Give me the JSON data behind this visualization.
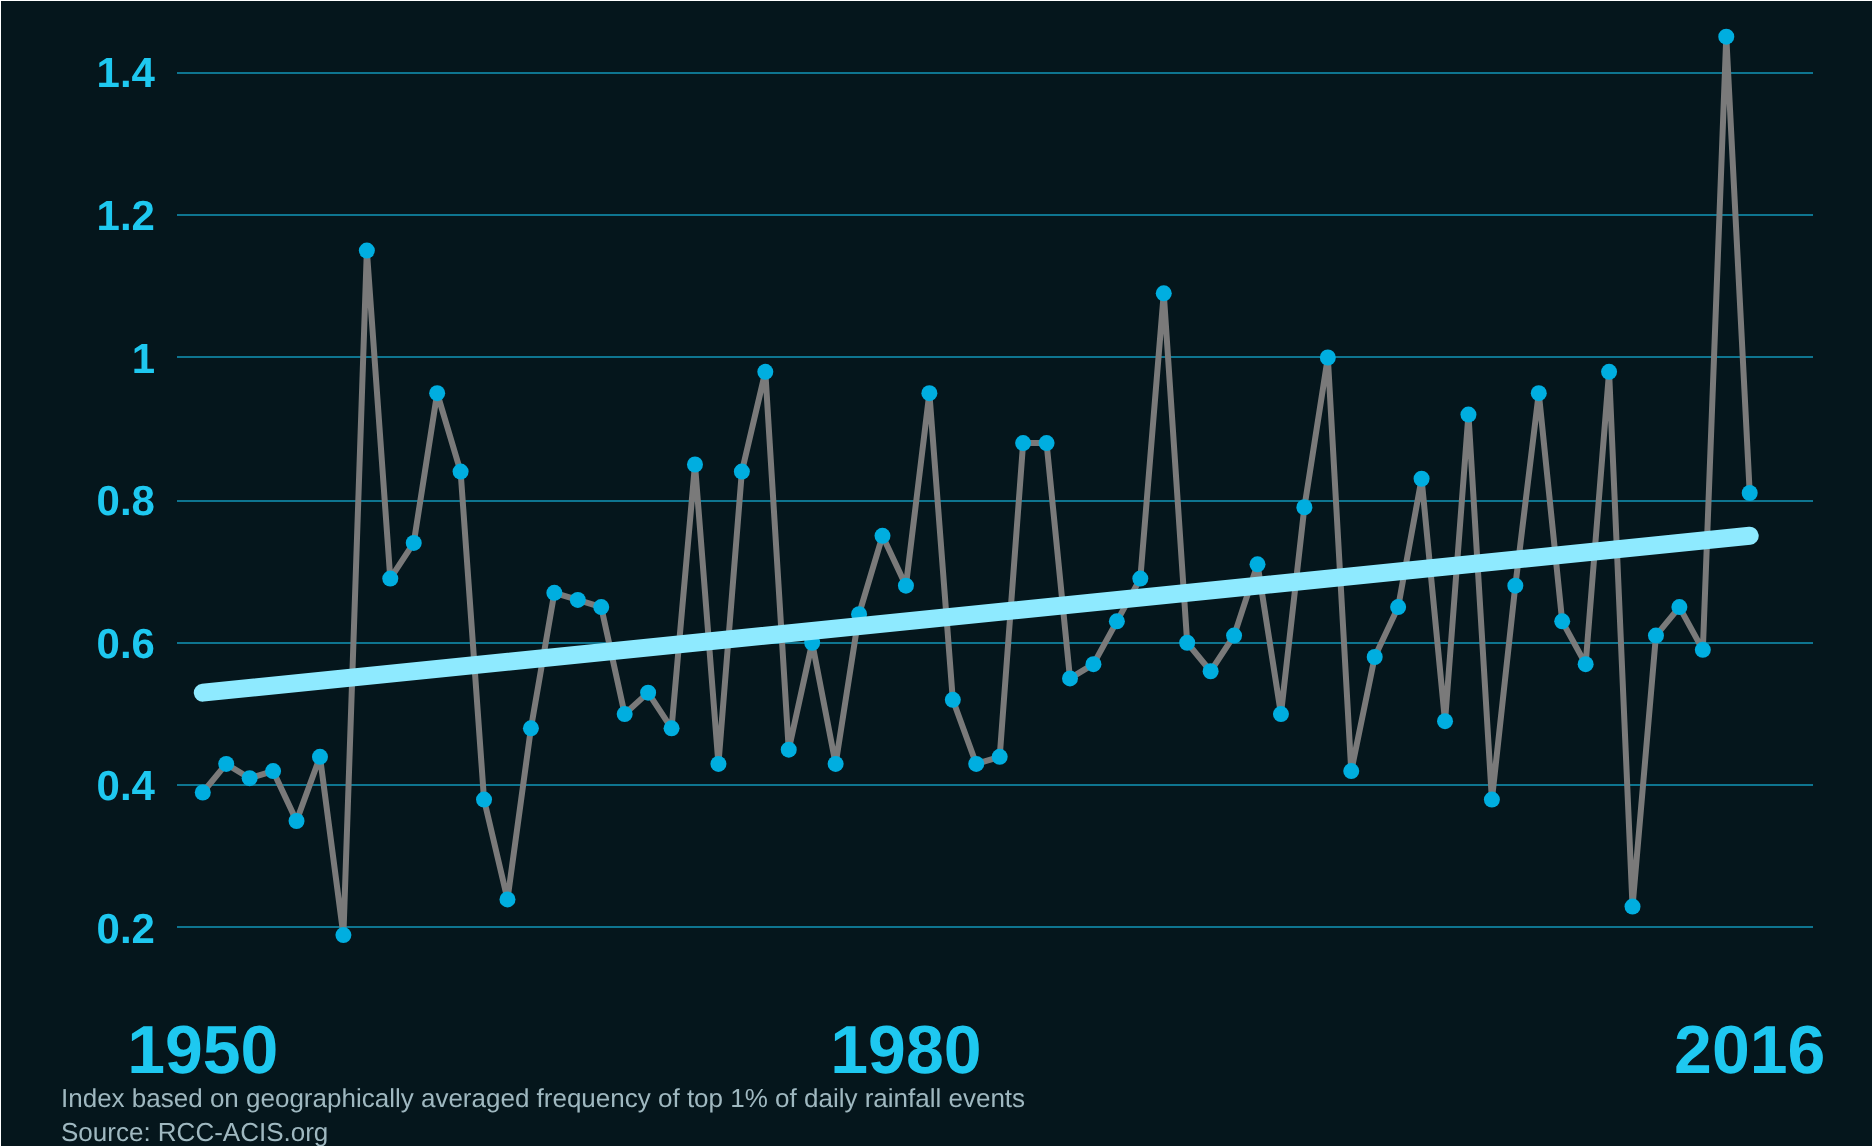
{
  "chart_data": {
    "type": "line",
    "x": [
      1950,
      1951,
      1952,
      1953,
      1954,
      1955,
      1956,
      1957,
      1958,
      1959,
      1960,
      1961,
      1962,
      1963,
      1964,
      1965,
      1966,
      1967,
      1968,
      1969,
      1970,
      1971,
      1972,
      1973,
      1974,
      1975,
      1976,
      1977,
      1978,
      1979,
      1980,
      1981,
      1982,
      1983,
      1984,
      1985,
      1986,
      1987,
      1988,
      1989,
      1990,
      1991,
      1992,
      1993,
      1994,
      1995,
      1996,
      1997,
      1998,
      1999,
      2000,
      2001,
      2002,
      2003,
      2004,
      2005,
      2006,
      2007,
      2008,
      2009,
      2010,
      2011,
      2012,
      2013,
      2014,
      2015,
      2016
    ],
    "series": [
      {
        "color": "#00aee0",
        "values": [
          0.39,
          0.43,
          0.41,
          0.42,
          0.35,
          0.44,
          0.19,
          1.15,
          0.69,
          0.74,
          0.95,
          0.84,
          0.38,
          0.24,
          0.48,
          0.67,
          0.66,
          0.65,
          0.5,
          0.53,
          0.48,
          0.85,
          0.43,
          0.84,
          0.98,
          0.45,
          0.6,
          0.43,
          0.64,
          0.75,
          0.68,
          0.95,
          0.52,
          0.43,
          0.44,
          0.88,
          0.88,
          0.55,
          0.57,
          0.63,
          0.69,
          1.09,
          0.6,
          0.56,
          0.61,
          0.71,
          0.5,
          0.79,
          1.0,
          0.42,
          0.58,
          0.65,
          0.83,
          0.49,
          0.92,
          0.38,
          0.68,
          0.95,
          0.63,
          0.57,
          0.98,
          0.23,
          0.61,
          0.65,
          0.59,
          1.45,
          0.81
        ]
      },
      {
        "type": "line",
        "marker": "none",
        "color": "#8eeaff",
        "x": [
          1950,
          2016
        ],
        "values": [
          0.53,
          0.75
        ]
      }
    ],
    "marker": "circle",
    "grid": "y",
    "xlim": [
      1948.9,
      2018.7
    ],
    "xticks": [
      1950,
      1980,
      2016
    ],
    "ylim": [
      0.12,
      1.5
    ],
    "yticks": [
      0.2,
      0.4,
      0.6,
      0.8,
      {
        "value": 1,
        "label": "1"
      },
      1.2,
      1.4
    ],
    "annotations": [
      "Index based on geographically averaged frequency of top 1% of daily rainfall events",
      "Source: RCC-ACIS.org"
    ]
  }
}
